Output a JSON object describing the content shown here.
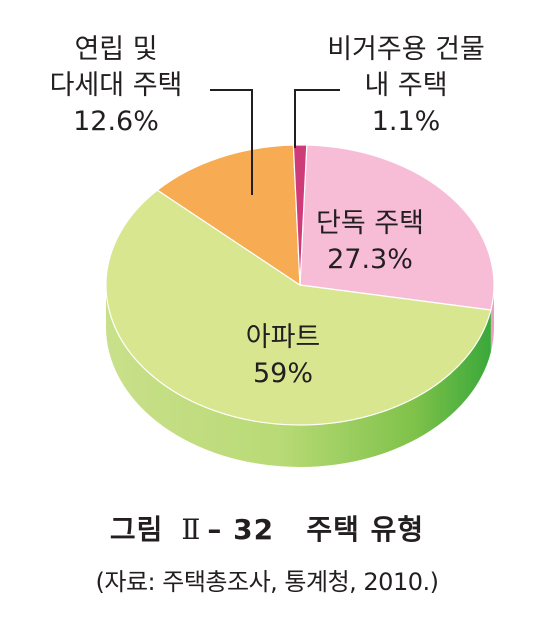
{
  "chart_data": {
    "type": "pie",
    "title": "",
    "slices": [
      {
        "label_lines": [
          "단독 주택"
        ],
        "value": 27.3,
        "value_label": "27.3%",
        "color": "#f7bdd6",
        "side_color": "#ec9fc2"
      },
      {
        "label_lines": [
          "아파트"
        ],
        "value": 59,
        "value_label": "59%",
        "color": "#d9e690",
        "side_color": "#92c94e"
      },
      {
        "label_lines": [
          "연립 및",
          "다세대 주택"
        ],
        "value": 12.6,
        "value_label": "12.6%",
        "color": "#f7ab52",
        "side_color": "#e68c2e"
      },
      {
        "label_lines": [
          "비거주용 건물",
          "내 주택"
        ],
        "value": 1.1,
        "value_label": "1.1%",
        "color": "#cf3a78",
        "side_color": "#a8245c"
      }
    ]
  },
  "caption": {
    "title_prefix": "그림",
    "title_roman": "Ⅱ",
    "title_number": "– 32",
    "title_text": "주택 유형",
    "source": "(자료: 주택총조사, 통계청, 2010.)"
  }
}
